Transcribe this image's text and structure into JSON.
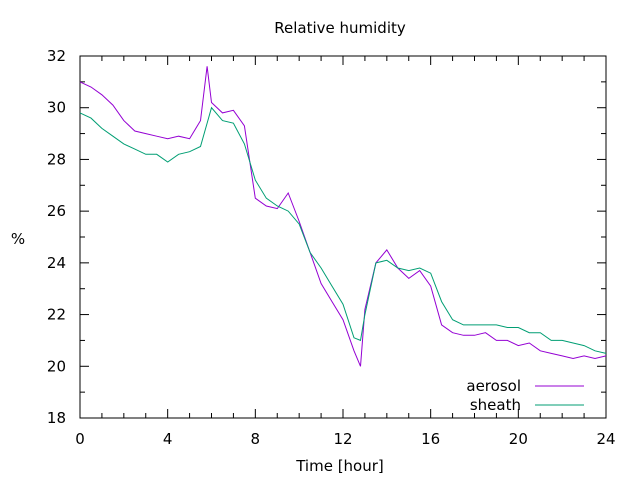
{
  "chart_data": {
    "type": "line",
    "title": "Relative humidity",
    "xlabel": "Time [hour]",
    "ylabel": "%",
    "xlim": [
      0,
      24
    ],
    "ylim": [
      18,
      32
    ],
    "x_ticks": [
      0,
      4,
      8,
      12,
      16,
      20,
      24
    ],
    "y_ticks": [
      18,
      20,
      22,
      24,
      26,
      28,
      30,
      32
    ],
    "grid": false,
    "legend_position": "bottom-right",
    "colors": {
      "aerosol": "#9400d3",
      "sheath": "#009e73"
    },
    "series": [
      {
        "name": "aerosol",
        "x": [
          0,
          0.5,
          1,
          1.5,
          2,
          2.5,
          3,
          3.5,
          4,
          4.5,
          5,
          5.5,
          5.8,
          6,
          6.5,
          7,
          7.5,
          8,
          8.5,
          9,
          9.5,
          10,
          10.5,
          11,
          11.5,
          12,
          12.5,
          12.8,
          13,
          13.5,
          14,
          14.5,
          15,
          15.5,
          16,
          16.5,
          17,
          17.5,
          18,
          18.5,
          19,
          19.5,
          20,
          20.5,
          21,
          21.5,
          22,
          22.5,
          23,
          23.5,
          24
        ],
        "values": [
          31.0,
          30.8,
          30.5,
          30.1,
          29.5,
          29.1,
          29.0,
          28.9,
          28.8,
          28.9,
          28.8,
          29.5,
          31.6,
          30.2,
          29.8,
          29.9,
          29.3,
          26.5,
          26.2,
          26.1,
          26.7,
          25.6,
          24.4,
          23.2,
          22.5,
          21.8,
          20.6,
          20.0,
          22.2,
          24.0,
          24.5,
          23.8,
          23.4,
          23.7,
          23.1,
          21.6,
          21.3,
          21.2,
          21.2,
          21.3,
          21.0,
          21.0,
          20.8,
          20.9,
          20.6,
          20.5,
          20.4,
          20.3,
          20.4,
          20.3,
          20.4
        ]
      },
      {
        "name": "sheath",
        "x": [
          0,
          0.5,
          1,
          1.5,
          2,
          2.5,
          3,
          3.5,
          4,
          4.5,
          5,
          5.5,
          5.8,
          6,
          6.5,
          7,
          7.5,
          8,
          8.5,
          9,
          9.5,
          10,
          10.5,
          11,
          11.5,
          12,
          12.5,
          12.8,
          13,
          13.5,
          14,
          14.5,
          15,
          15.5,
          16,
          16.5,
          17,
          17.5,
          18,
          18.5,
          19,
          19.5,
          20,
          20.5,
          21,
          21.5,
          22,
          22.5,
          23,
          23.5,
          24
        ],
        "values": [
          29.8,
          29.6,
          29.2,
          28.9,
          28.6,
          28.4,
          28.2,
          28.2,
          27.9,
          28.2,
          28.3,
          28.5,
          29.4,
          30.0,
          29.5,
          29.4,
          28.6,
          27.2,
          26.5,
          26.2,
          26.0,
          25.5,
          24.4,
          23.8,
          23.1,
          22.4,
          21.1,
          21.0,
          22.0,
          24.0,
          24.1,
          23.8,
          23.7,
          23.8,
          23.6,
          22.5,
          21.8,
          21.6,
          21.6,
          21.6,
          21.6,
          21.5,
          21.5,
          21.3,
          21.3,
          21.0,
          21.0,
          20.9,
          20.8,
          20.6,
          20.5
        ]
      }
    ]
  }
}
